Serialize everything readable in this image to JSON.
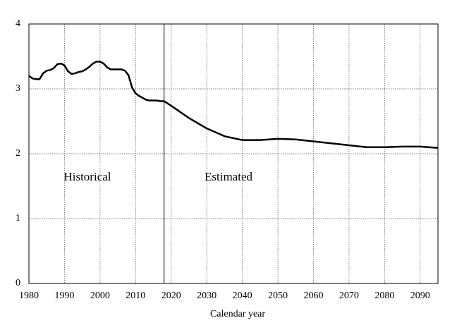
{
  "chart_data": {
    "type": "line",
    "x_label": "Calendar year",
    "annotations": [
      "Historical",
      "Estimated"
    ],
    "divider": 2018,
    "x": [
      1980,
      1981,
      1982,
      1983,
      1984,
      1985,
      1986,
      1987,
      1988,
      1989,
      1990,
      1991,
      1992,
      1993,
      1994,
      1995,
      1996,
      1997,
      1998,
      1999,
      2000,
      2001,
      2002,
      2003,
      2004,
      2005,
      2006,
      2007,
      2008,
      2009,
      2010,
      2011,
      2012,
      2013,
      2014,
      2015,
      2016,
      2017,
      2018,
      2020,
      2025,
      2030,
      2035,
      2040,
      2045,
      2050,
      2055,
      2060,
      2065,
      2070,
      2075,
      2080,
      2085,
      2090,
      2095
    ],
    "series": [
      {
        "color": "#000000",
        "values": [
          3.2,
          3.16,
          3.15,
          3.15,
          3.24,
          3.28,
          3.29,
          3.32,
          3.38,
          3.39,
          3.36,
          3.27,
          3.23,
          3.24,
          3.26,
          3.27,
          3.3,
          3.34,
          3.39,
          3.42,
          3.42,
          3.39,
          3.33,
          3.3,
          3.3,
          3.3,
          3.3,
          3.28,
          3.21,
          3.02,
          2.93,
          2.89,
          2.86,
          2.83,
          2.82,
          2.82,
          2.82,
          2.81,
          2.81,
          2.74,
          2.55,
          2.39,
          2.27,
          2.21,
          2.21,
          2.23,
          2.22,
          2.19,
          2.16,
          2.13,
          2.1,
          2.1,
          2.11,
          2.11,
          2.09
        ]
      }
    ],
    "xlim": [
      1980,
      2095
    ],
    "xticks": [
      1980,
      1990,
      2000,
      2010,
      2020,
      2030,
      2040,
      2050,
      2060,
      2070,
      2080,
      2090
    ],
    "ylim": [
      0,
      4
    ],
    "yticks": [
      0,
      1,
      2,
      3,
      4
    ],
    "grid": true
  }
}
